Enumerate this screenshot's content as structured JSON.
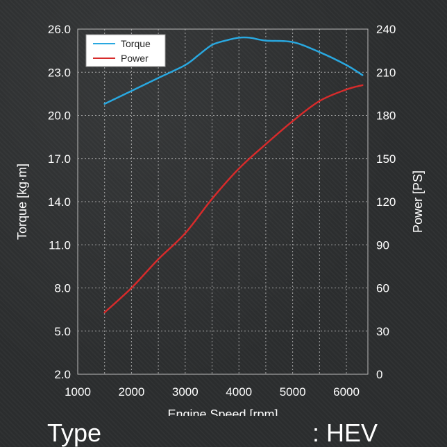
{
  "chart_data": {
    "type": "line",
    "xlabel": "Engine Speed [rpm]",
    "ylabel": "Torque [kg·m]",
    "y2label": "Power [PS]",
    "xlim": [
      1000,
      6400
    ],
    "ylim": [
      2.0,
      26.0
    ],
    "y2lim": [
      0,
      240
    ],
    "x_ticks": [
      1000,
      2000,
      3000,
      4000,
      5000,
      6000
    ],
    "x_tick_labels": [
      "1000",
      "2000",
      "3000",
      "4000",
      "5000",
      "6000"
    ],
    "y_ticks": [
      2.0,
      5.0,
      8.0,
      11.0,
      14.0,
      17.0,
      20.0,
      23.0,
      26.0
    ],
    "y_tick_labels": [
      "2.0",
      "5.0",
      "8.0",
      "11.0",
      "14.0",
      "17.0",
      "20.0",
      "23.0",
      "26.0"
    ],
    "y2_ticks": [
      0,
      30,
      60,
      90,
      120,
      150,
      180,
      210,
      240
    ],
    "y2_tick_labels": [
      "0",
      "30",
      "60",
      "90",
      "120",
      "150",
      "180",
      "210",
      "240"
    ],
    "grid": true,
    "legend_position": "top-left",
    "series": [
      {
        "name": "Torque",
        "axis": "left",
        "color": "#29a8e0",
        "x": [
          1500,
          2000,
          2500,
          3000,
          3250,
          3500,
          3750,
          4000,
          4200,
          4500,
          5000,
          5500,
          6000,
          6300
        ],
        "y": [
          20.8,
          21.7,
          22.6,
          23.5,
          24.2,
          24.9,
          25.2,
          25.4,
          25.4,
          25.2,
          25.1,
          24.4,
          23.5,
          22.8
        ]
      },
      {
        "name": "Power",
        "axis": "right",
        "color": "#d72b2b",
        "x": [
          1500,
          2000,
          2500,
          3000,
          3500,
          4000,
          4500,
          5000,
          5500,
          6000,
          6300
        ],
        "y": [
          43,
          60,
          80,
          98,
          122,
          143,
          160,
          176,
          190,
          198,
          201
        ]
      }
    ]
  },
  "footer": {
    "label": "Type",
    "value": ": HEV"
  },
  "colors": {
    "background": "#2c2e2f",
    "grid": "#bbbbbb",
    "torque": "#29a8e0",
    "power": "#d72b2b"
  }
}
